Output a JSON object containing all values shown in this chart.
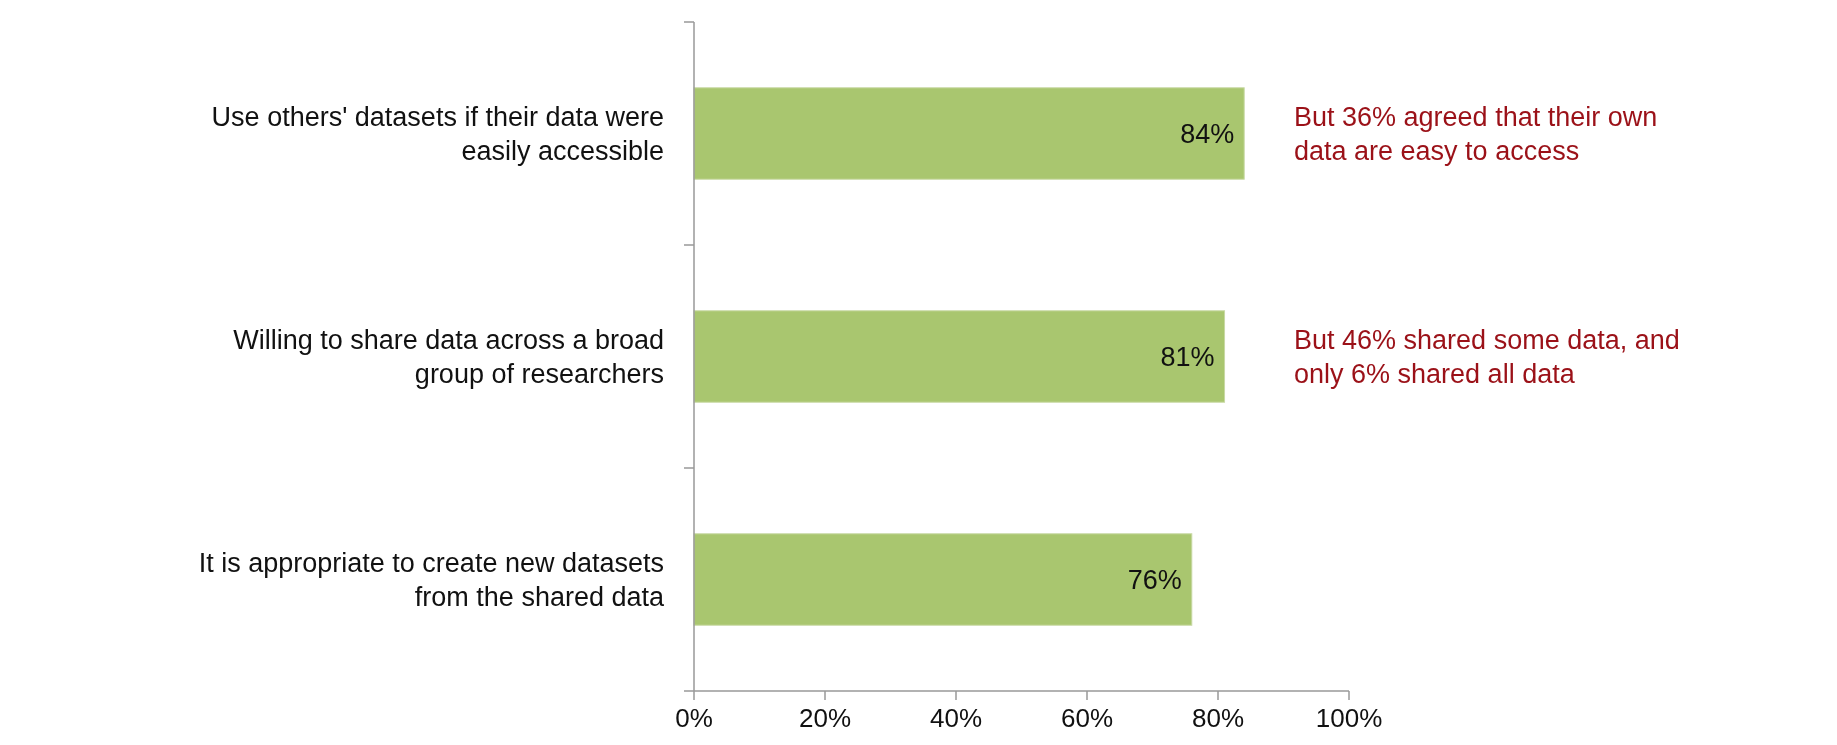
{
  "chart_data": {
    "type": "bar",
    "orientation": "horizontal",
    "categories": [
      "Use others' datasets if their data were easily accessible",
      "Willing to share data across a broad group of researchers",
      "It is appropriate to create new datasets from the shared data"
    ],
    "values": [
      84,
      81,
      76
    ],
    "color": "#a9c66f",
    "value_labels": [
      "84%",
      "81%",
      "76%"
    ],
    "xlim": [
      0,
      100
    ],
    "xticks": [
      {
        "value": 0,
        "label": "0%"
      },
      {
        "value": 20,
        "label": "20%"
      },
      {
        "value": 40,
        "label": "40%"
      },
      {
        "value": 60,
        "label": "60%"
      },
      {
        "value": 80,
        "label": "80%"
      },
      {
        "value": 100,
        "label": "100%"
      }
    ],
    "grid": false,
    "annotations": [
      "But 36% agreed that their own data are easy to access",
      "But 46% shared some data, and only 6% shared all data"
    ]
  }
}
